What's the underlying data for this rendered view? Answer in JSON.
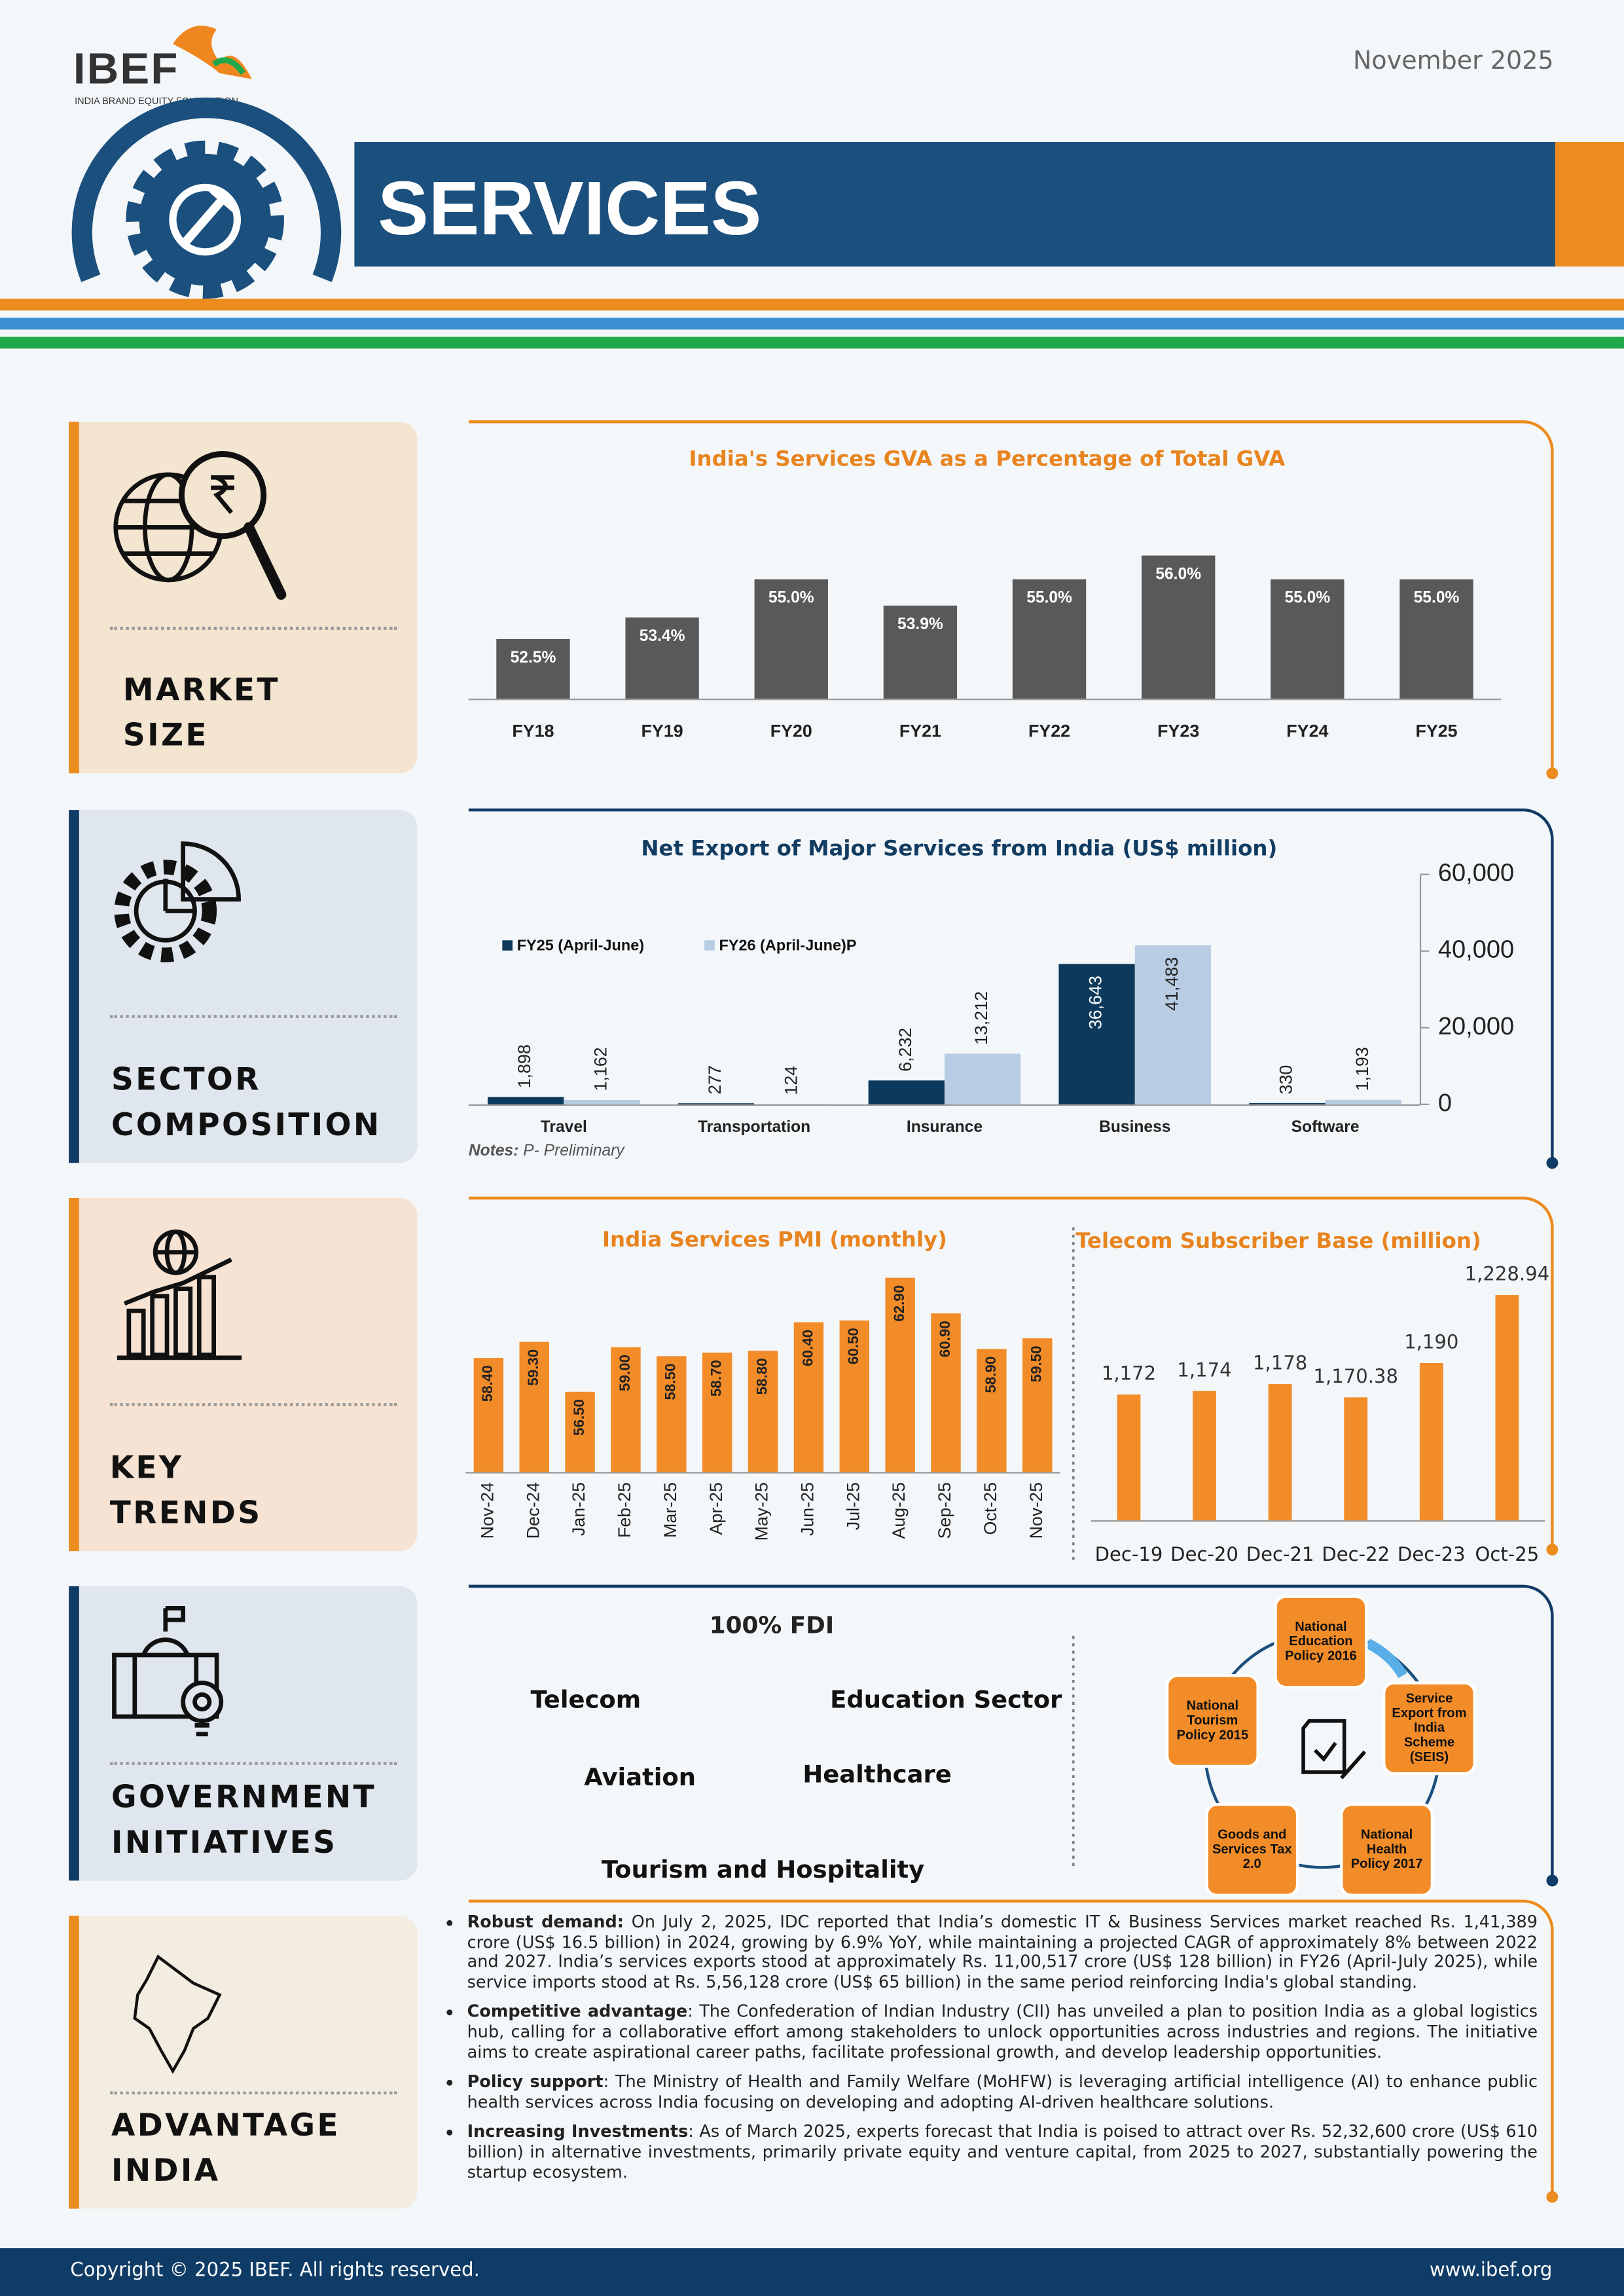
{
  "header": {
    "logo": "IBEF",
    "logo_sub": "INDIA BRAND EQUITY FOUNDATION",
    "date": "November 2025",
    "title": "SERVICES"
  },
  "sections": [
    {
      "label": [
        "MARKET",
        "SIZE"
      ]
    },
    {
      "label": [
        "SECTOR",
        "COMPOSITION"
      ]
    },
    {
      "label": [
        "KEY",
        "TRENDS"
      ]
    },
    {
      "label": [
        "GOVERNMENT",
        "INITIATIVES"
      ]
    },
    {
      "label": [
        "ADVANTAGE",
        "INDIA"
      ]
    }
  ],
  "chart_data": [
    {
      "type": "bar",
      "title": "India's Services GVA as a Percentage of Total GVA",
      "categories": [
        "FY18",
        "FY19",
        "FY20",
        "FY21",
        "FY22",
        "FY23",
        "FY24",
        "FY25"
      ],
      "values": [
        52.5,
        53.4,
        55.0,
        53.9,
        55.0,
        56.0,
        55.0,
        55.0
      ],
      "value_labels": [
        "52.5%",
        "53.4%",
        "55.0%",
        "53.9%",
        "55.0%",
        "56.0%",
        "55.0%",
        "55.0%"
      ],
      "color": "#595959",
      "ylim": [
        50,
        57
      ]
    },
    {
      "type": "bar",
      "title": "Net Export of Major Services from India (US$ million)",
      "categories": [
        "Travel",
        "Transportation",
        "Insurance",
        "Business",
        "Software"
      ],
      "series": [
        {
          "name": "FY25 (April-June)",
          "color": "#0d3a5c",
          "values": [
            1898,
            277,
            6232,
            36643,
            330
          ],
          "value_labels": [
            "1,898",
            "277",
            "6,232",
            "36,643",
            "330"
          ]
        },
        {
          "name": "FY26 (April-June)P",
          "color": "#b8cde3",
          "values": [
            1162,
            124,
            13212,
            41483,
            1193
          ],
          "value_labels": [
            "1,162",
            "124",
            "13,212",
            "41,483",
            "1,193"
          ]
        }
      ],
      "ylim": [
        0,
        60000
      ],
      "yticks": [
        0,
        {
          "value": 20000,
          "label": "20,000"
        },
        {
          "value": 40000,
          "label": "40,000"
        },
        {
          "value": 60000,
          "label": "60,000"
        }
      ],
      "y_axis_side": "right",
      "note_label": "Notes:",
      "note": " P- Preliminary"
    },
    {
      "type": "bar",
      "title": "India Services PMI (monthly)",
      "categories": [
        "Nov-24",
        "Dec-24",
        "Jan-25",
        "Feb-25",
        "Mar-25",
        "Apr-25",
        "May-25",
        "Jun-25",
        "Jul-25",
        "Aug-25",
        "Sep-25",
        "Oct-25",
        "Nov-25"
      ],
      "values": [
        58.4,
        59.3,
        56.5,
        59.0,
        58.5,
        58.7,
        58.8,
        60.4,
        60.5,
        62.9,
        60.9,
        58.9,
        59.5
      ],
      "value_labels": [
        "58.40",
        "59.30",
        "56.50",
        "59.00",
        "58.50",
        "58.70",
        "58.80",
        "60.40",
        "60.50",
        "62.90",
        "60.90",
        "58.90",
        "59.50"
      ],
      "color": "#f28c28",
      "ylim": [
        52,
        64
      ]
    },
    {
      "type": "bar",
      "title": "Telecom Subscriber Base (million)",
      "categories": [
        "Dec-19",
        "Dec-20",
        "Dec-21",
        "Dec-22",
        "Dec-23",
        "Oct-25"
      ],
      "values": [
        1172,
        1174,
        1178,
        1170.38,
        1190,
        1228.94
      ],
      "value_labels": [
        "1,172",
        "1,174",
        "1,178",
        "1,170.38",
        "1,190",
        "1,228.94"
      ],
      "color": "#f28c28",
      "ylim": [
        1100,
        1240
      ]
    }
  ],
  "fdi": {
    "title": "100% FDI",
    "sectors": [
      "Telecom",
      "Education Sector",
      "Aviation",
      "Healthcare",
      "Tourism and Hospitality"
    ]
  },
  "policies": [
    [
      "National",
      "Education",
      "Policy 2016"
    ],
    [
      "Service",
      "Export from",
      "India",
      "Scheme",
      "(SEIS)"
    ],
    [
      "National",
      "Health",
      "Policy 2017"
    ],
    [
      "Goods and",
      "Services Tax",
      "2.0"
    ],
    [
      "National",
      "Tourism",
      "Policy 2015"
    ]
  ],
  "advantage": [
    {
      "heading": "Robust demand:",
      "text": " On July 2, 2025, IDC reported that India’s domestic IT & Business Services market reached Rs. 1,41,389 crore (US$ 16.5 billion) in 2024, growing by 6.9% YoY, while maintaining a projected CAGR of approximately 8% between 2022 and 2027. India’s services exports stood at approximately Rs. 11,00,517 crore (US$ 128 billion) in FY26 (April-July 2025), while service imports stood at Rs. 5,56,128 crore (US$ 65 billion) in the same period reinforcing India's global standing."
    },
    {
      "heading": "Competitive advantage",
      "text": ": The Confederation of Indian Industry (CII) has unveiled a plan to position India as a global logistics hub, calling for a collaborative effort among stakeholders to unlock opportunities across industries and regions. The initiative aims to create aspirational career paths, facilitate professional growth, and develop leadership opportunities."
    },
    {
      "heading": "Policy support",
      "text": ": The Ministry of Health and Family Welfare (MoHFW) is leveraging artificial intelligence (AI) to enhance public health services across India focusing on developing and adopting AI-driven healthcare solutions."
    },
    {
      "heading": "Increasing Investments",
      "text": ": As of March 2025, experts forecast that India is poised to attract over Rs. 52,32,600 crore (US$ 610 billion) in alternative investments, primarily private equity and venture capital, from 2025 to 2027, substantially powering the startup ecosystem."
    }
  ],
  "footer": {
    "copyright": "Copyright © 2025 IBEF. All rights reserved.",
    "url": "www.ibef.org"
  }
}
